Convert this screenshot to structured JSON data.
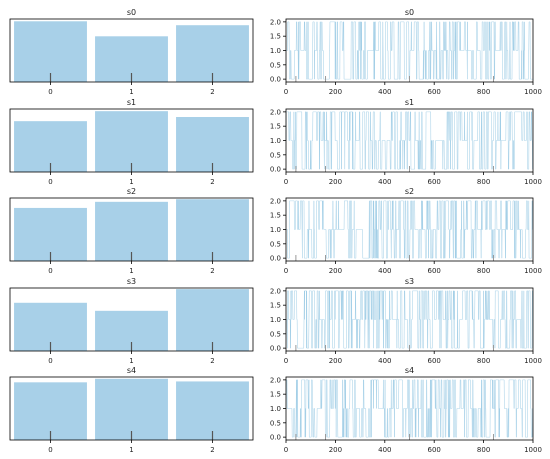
{
  "colors": {
    "bar": "#a8d0e8",
    "trace": "#9fcde6",
    "axis": "#000000",
    "tick_mark": "#555555"
  },
  "chart_data": [
    {
      "type": "bar",
      "title": "s0",
      "categories": [
        "0",
        "1",
        "2"
      ],
      "values": [
        0.372,
        0.28,
        0.348
      ],
      "ylim": [
        0,
        0.386
      ],
      "grid": false
    },
    {
      "type": "line",
      "title": "s0",
      "x_ticks": [
        0,
        200,
        400,
        600,
        800,
        1000
      ],
      "y_ticks": [
        "0.0",
        "0.5",
        "1.0",
        "1.5",
        "2.0"
      ],
      "xlim": [
        0,
        1000
      ],
      "ylim": [
        -0.1,
        2.1
      ],
      "n_samples": 1000,
      "levels": [
        0,
        1,
        2
      ],
      "level_fractions": [
        0.372,
        0.28,
        0.348
      ],
      "grid": false
    },
    {
      "type": "bar",
      "title": "s1",
      "categories": [
        "0",
        "1",
        "2"
      ],
      "values": [
        0.305,
        0.365,
        0.33
      ],
      "ylim": [
        0,
        0.378
      ],
      "grid": false
    },
    {
      "type": "line",
      "title": "s1",
      "x_ticks": [
        0,
        200,
        400,
        600,
        800,
        1000
      ],
      "y_ticks": [
        "0.0",
        "0.5",
        "1.0",
        "1.5",
        "2.0"
      ],
      "xlim": [
        0,
        1000
      ],
      "ylim": [
        -0.1,
        2.1
      ],
      "n_samples": 1000,
      "levels": [
        0,
        1,
        2
      ],
      "level_fractions": [
        0.305,
        0.365,
        0.33
      ],
      "grid": false
    },
    {
      "type": "bar",
      "title": "s2",
      "categories": [
        "0",
        "1",
        "2"
      ],
      "values": [
        0.305,
        0.34,
        0.355
      ],
      "ylim": [
        0,
        0.362
      ],
      "grid": false
    },
    {
      "type": "line",
      "title": "s2",
      "x_ticks": [
        0,
        200,
        400,
        600,
        800,
        1000
      ],
      "y_ticks": [
        "0.0",
        "0.5",
        "1.0",
        "1.5",
        "2.0"
      ],
      "xlim": [
        0,
        1000
      ],
      "ylim": [
        -0.1,
        2.1
      ],
      "n_samples": 1000,
      "levels": [
        0,
        1,
        2
      ],
      "level_fractions": [
        0.305,
        0.34,
        0.355
      ],
      "grid": false
    },
    {
      "type": "bar",
      "title": "s3",
      "categories": [
        "0",
        "1",
        "2"
      ],
      "values": [
        0.3,
        0.25,
        0.385
      ],
      "ylim": [
        0,
        0.392
      ],
      "grid": false
    },
    {
      "type": "line",
      "title": "s3",
      "x_ticks": [
        0,
        200,
        400,
        600,
        800,
        1000
      ],
      "y_ticks": [
        "0.0",
        "0.5",
        "1.0",
        "1.5",
        "2.0"
      ],
      "xlim": [
        0,
        1000
      ],
      "ylim": [
        -0.1,
        2.1
      ],
      "n_samples": 1000,
      "levels": [
        0,
        1,
        2
      ],
      "level_fractions": [
        0.3,
        0.25,
        0.385
      ],
      "grid": false
    },
    {
      "type": "bar",
      "title": "s4",
      "categories": [
        "0",
        "1",
        "2"
      ],
      "values": [
        0.325,
        0.345,
        0.33
      ],
      "ylim": [
        0,
        0.355
      ],
      "grid": false
    },
    {
      "type": "line",
      "title": "s4",
      "x_ticks": [
        0,
        200,
        400,
        600,
        800,
        1000
      ],
      "y_ticks": [
        "0.0",
        "0.5",
        "1.0",
        "1.5",
        "2.0"
      ],
      "xlim": [
        0,
        1000
      ],
      "ylim": [
        -0.1,
        2.1
      ],
      "n_samples": 1000,
      "levels": [
        0,
        1,
        2
      ],
      "level_fractions": [
        0.325,
        0.345,
        0.33
      ],
      "grid": false
    }
  ]
}
